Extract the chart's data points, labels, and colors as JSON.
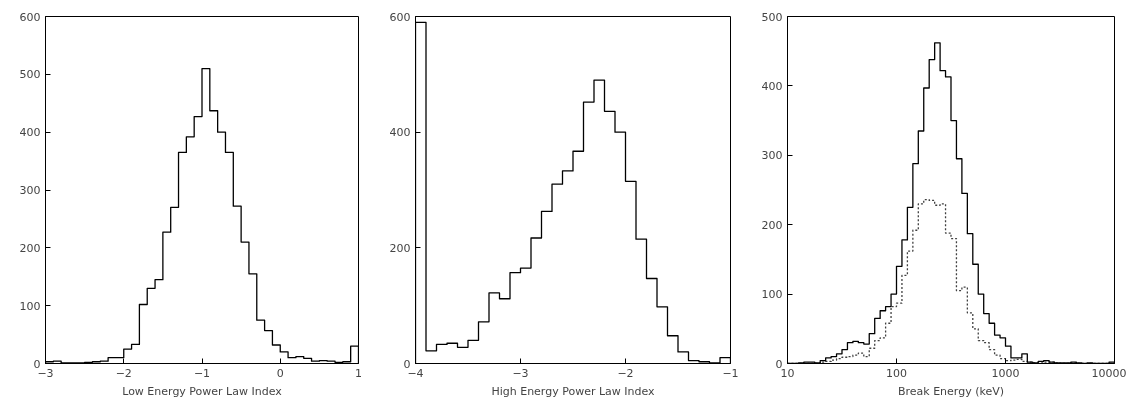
{
  "chart_data": [
    {
      "type": "histogram",
      "xlabel": "Low Energy Power Law Index",
      "bins": [
        -3.0,
        -2.9,
        -2.8,
        -2.7,
        -2.6,
        -2.5,
        -2.4,
        -2.3,
        -2.2,
        -2.1,
        -2.0,
        -1.9,
        -1.8,
        -1.7,
        -1.6,
        -1.5,
        -1.4,
        -1.3,
        -1.2,
        -1.1,
        -1.0,
        -0.9,
        -0.8,
        -0.7,
        -0.6,
        -0.5,
        -0.4,
        -0.3,
        -0.2,
        -0.1,
        0.0,
        0.1,
        0.2,
        0.3,
        0.4,
        0.5,
        0.6,
        0.7,
        0.8,
        0.9,
        1.0
      ],
      "series": [
        {
          "color": "#000000",
          "line_style": "solid",
          "values": [
            3,
            4,
            1,
            1,
            1,
            2,
            3,
            4,
            10,
            10,
            25,
            33,
            102,
            130,
            145,
            227,
            270,
            365,
            392,
            427,
            510,
            437,
            400,
            365,
            272,
            210,
            155,
            75,
            57,
            32,
            20,
            10,
            12,
            9,
            4,
            5,
            4,
            2,
            3,
            30
          ]
        }
      ],
      "xlim": [
        -3,
        1
      ],
      "xticks": [
        -3,
        -2,
        -1,
        0,
        1
      ],
      "ylim": [
        0,
        600
      ],
      "yticks": [
        0,
        100,
        200,
        300,
        400,
        500,
        600
      ],
      "grid": false
    },
    {
      "type": "histogram",
      "xlabel": "High Energy Power Law Index",
      "bins": [
        -4.0,
        -3.9,
        -3.8,
        -3.7,
        -3.6,
        -3.5,
        -3.4,
        -3.3,
        -3.2,
        -3.1,
        -3.0,
        -2.9,
        -2.8,
        -2.7,
        -2.6,
        -2.5,
        -2.4,
        -2.3,
        -2.2,
        -2.1,
        -2.0,
        -1.9,
        -1.8,
        -1.7,
        -1.6,
        -1.5,
        -1.4,
        -1.3,
        -1.2,
        -1.1,
        -1.0
      ],
      "series": [
        {
          "color": "#000000",
          "line_style": "solid",
          "values": [
            590,
            22,
            33,
            35,
            28,
            40,
            72,
            122,
            112,
            157,
            165,
            217,
            263,
            310,
            333,
            367,
            452,
            490,
            436,
            400,
            315,
            215,
            147,
            98,
            48,
            20,
            5,
            3,
            1,
            10
          ]
        }
      ],
      "xlim": [
        -4,
        -1
      ],
      "xticks": [
        -4,
        -3,
        -2,
        -1
      ],
      "ylim": [
        0,
        600
      ],
      "yticks": [
        0,
        200,
        400,
        600
      ],
      "grid": false
    },
    {
      "type": "histogram",
      "xlabel": "Break Energy (keV)",
      "log": "x",
      "bins": [
        10,
        11.22,
        12.59,
        14.13,
        15.85,
        17.78,
        19.95,
        22.39,
        25.12,
        28.18,
        31.62,
        35.48,
        39.81,
        44.67,
        50.12,
        56.23,
        63.1,
        70.79,
        79.43,
        89.13,
        100,
        112.2,
        125.9,
        141.3,
        158.5,
        177.8,
        199.5,
        223.9,
        251.2,
        281.8,
        316.2,
        354.8,
        398.1,
        446.7,
        501.2,
        562.3,
        631.0,
        707.9,
        794.3,
        891.3,
        1000,
        1122,
        1259,
        1413,
        1585,
        1778,
        1995,
        2239,
        2512,
        2818,
        3162,
        3548,
        3981,
        4467,
        5012,
        5623,
        6310,
        7079,
        7943,
        8913,
        10000
      ],
      "series": [
        {
          "color": "#000000",
          "line_style": "solid",
          "values": [
            0,
            0,
            1,
            2,
            2,
            1,
            4,
            8,
            10,
            14,
            20,
            30,
            32,
            30,
            28,
            43,
            65,
            76,
            82,
            100,
            140,
            178,
            225,
            288,
            335,
            397,
            438,
            462,
            422,
            413,
            350,
            295,
            245,
            187,
            143,
            100,
            72,
            58,
            41,
            37,
            25,
            8,
            8,
            14,
            2,
            1,
            3,
            4,
            2,
            1,
            1,
            1,
            2,
            1,
            0,
            1,
            0,
            0,
            0,
            2
          ]
        },
        {
          "color": "#404040",
          "line_style": "dotted",
          "values": [
            0,
            0,
            0,
            0,
            0,
            0,
            2,
            3,
            5,
            7,
            9,
            10,
            12,
            15,
            10,
            22,
            33,
            37,
            58,
            82,
            87,
            127,
            162,
            192,
            230,
            236,
            235,
            228,
            230,
            188,
            180,
            105,
            110,
            73,
            50,
            33,
            30,
            20,
            12,
            7,
            4,
            5,
            6,
            3,
            2,
            1,
            1,
            2,
            2,
            1,
            0,
            0,
            1,
            0,
            0,
            0,
            0,
            0,
            0,
            0
          ]
        }
      ],
      "xlim": [
        10,
        10000
      ],
      "xticks": [
        10,
        100,
        1000,
        10000
      ],
      "ylim": [
        0,
        500
      ],
      "yticks": [
        0,
        100,
        200,
        300,
        400,
        500
      ],
      "grid": false
    }
  ]
}
